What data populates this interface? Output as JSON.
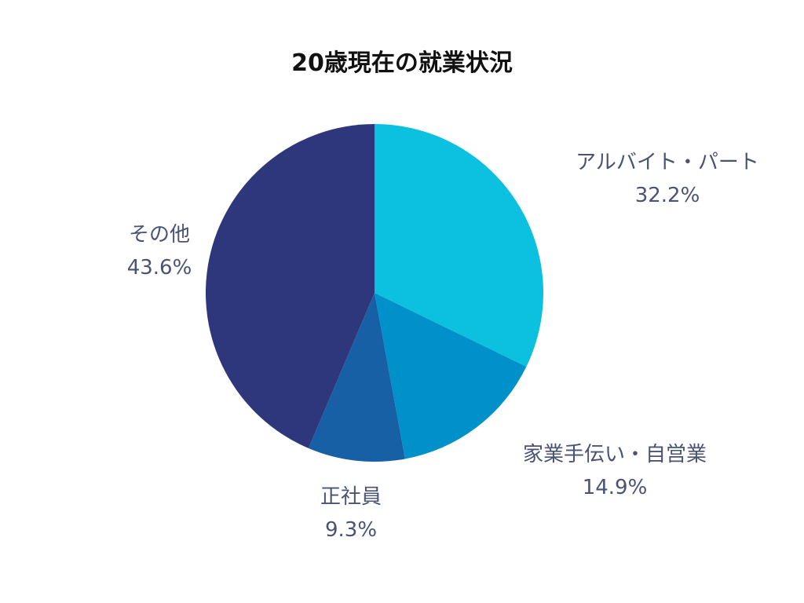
{
  "chart_data": {
    "type": "pie",
    "title": "20歳現在の就業状況",
    "start_angle_deg": 0,
    "direction": "clockwise",
    "slices": [
      {
        "name": "アルバイト・パート",
        "value": 32.2,
        "label": "32.2%",
        "color": "#0cc0df"
      },
      {
        "name": "家業手伝い・自営業",
        "value": 14.9,
        "label": "14.9%",
        "color": "#0091cb"
      },
      {
        "name": "正社員",
        "value": 9.3,
        "label": "9.3%",
        "color": "#1760a6"
      },
      {
        "name": "その他",
        "value": 43.6,
        "label": "43.6%",
        "color": "#2e377b"
      }
    ]
  }
}
